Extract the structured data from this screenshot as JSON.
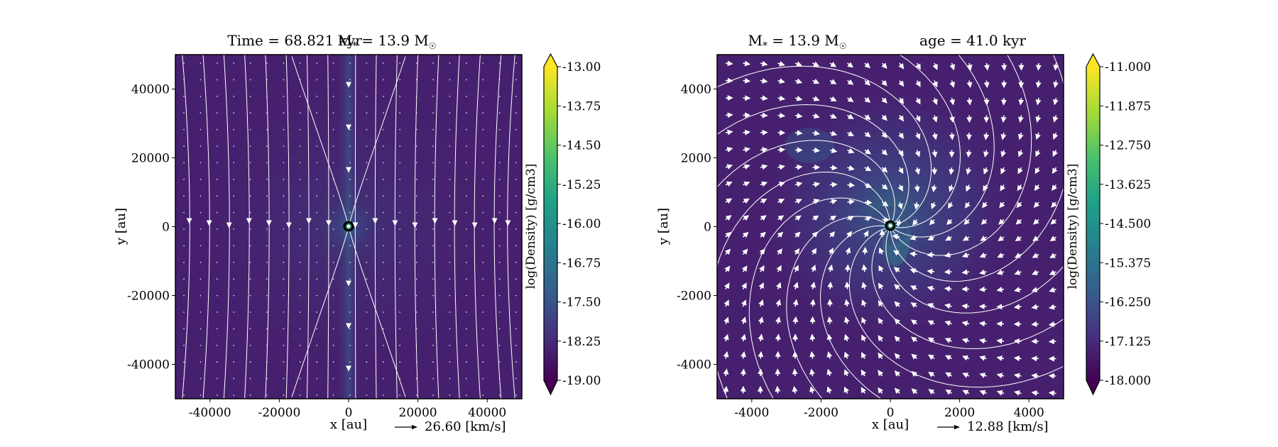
{
  "figure": {
    "panels": [
      {
        "id": "left",
        "title_time_label": "Time = 68.821 kyr",
        "title_mass_label": "M",
        "title_mass_sub": "*",
        "title_mass_value": "= 13.9 M",
        "title_mass_unit_sub": "☉",
        "xlabel": "x [au]",
        "ylabel": "y [au]",
        "xticks": [
          "-40000",
          "-20000",
          "0",
          "20000",
          "40000"
        ],
        "yticks": [
          "40000",
          "20000",
          "0",
          "-20000",
          "-40000"
        ],
        "quiver_key_label": "26.60 [km/s]",
        "colorbar_label": "log(Density) [g/cm3]",
        "colorbar_ticks": [
          "-13.00",
          "-13.75",
          "-14.50",
          "-15.25",
          "-16.00",
          "-16.75",
          "-17.50",
          "-18.25",
          "-19.00"
        ]
      },
      {
        "id": "right",
        "title_mass_label": "M",
        "title_mass_sub": "*",
        "title_mass_value": "= 13.9 M",
        "title_mass_unit_sub": "☉",
        "title_age_label": "age = 41.0 kyr",
        "xlabel": "x [au]",
        "ylabel": "y [au]",
        "xticks": [
          "-4000",
          "-2000",
          "0",
          "2000",
          "4000"
        ],
        "yticks": [
          "4000",
          "2000",
          "0",
          "-2000",
          "-4000"
        ],
        "quiver_key_label": "12.88 [km/s]",
        "colorbar_label": "log(Density) [g/cm3]",
        "colorbar_ticks": [
          "-11.000",
          "-11.875",
          "-12.750",
          "-13.625",
          "-14.500",
          "-15.375",
          "-16.250",
          "-17.125",
          "-18.000"
        ]
      }
    ]
  },
  "colors": {
    "viridis_low": "#440154",
    "viridis_1": "#46307e",
    "viridis_2": "#365c8d",
    "viridis_3": "#277f8e",
    "viridis_4": "#1fa187",
    "viridis_5": "#4ac16d",
    "viridis_6": "#a0da39",
    "viridis_high": "#fde725",
    "background_density": "#46206e",
    "stream_color": "#ffffff",
    "sink_color": "#1f7a55"
  },
  "chart_data": [
    {
      "type": "heatmap",
      "title": "Time = 68.821 kyr  M* = 13.9 M☉",
      "xlabel": "x [au]",
      "ylabel": "y [au]",
      "xlim": [
        -50000,
        50000
      ],
      "ylim": [
        -50000,
        50000
      ],
      "xticks": [
        -40000,
        -20000,
        0,
        20000,
        40000
      ],
      "yticks": [
        -40000,
        -20000,
        0,
        20000,
        40000
      ],
      "colorbar": {
        "label": "log(Density) [g/cm3]",
        "range": [
          -19.0,
          -13.0
        ],
        "cmap": "viridis",
        "ticks": [
          -13.0,
          -13.75,
          -14.5,
          -15.25,
          -16.0,
          -16.75,
          -17.5,
          -18.25,
          -19.0
        ]
      },
      "sink_particle": {
        "x": 0,
        "y": 0
      },
      "quiver_key": {
        "speed": 26.6,
        "unit": "km/s"
      },
      "overlay": [
        "velocity streamlines",
        "velocity arrows"
      ],
      "streamline_xs": [
        -48000,
        -42000,
        -36000,
        -30000,
        -24000,
        -18000,
        -12000,
        -6000,
        2000,
        8000,
        14000,
        20000,
        26000,
        32000,
        38000,
        44000,
        48000
      ]
    },
    {
      "type": "heatmap",
      "title": "M* = 13.9 M☉  age = 41.0 kyr",
      "xlabel": "x [au]",
      "ylabel": "y [au]",
      "xlim": [
        -5000,
        5000
      ],
      "ylim": [
        -5000,
        5000
      ],
      "xticks": [
        -4000,
        -2000,
        0,
        2000,
        4000
      ],
      "yticks": [
        -4000,
        -2000,
        0,
        2000,
        4000
      ],
      "colorbar": {
        "label": "log(Density) [g/cm3]",
        "range": [
          -18.0,
          -11.0
        ],
        "cmap": "viridis",
        "ticks": [
          -11.0,
          -11.875,
          -12.75,
          -13.625,
          -14.5,
          -15.375,
          -16.25,
          -17.125,
          -18.0
        ]
      },
      "sink_particle": {
        "x": 0,
        "y": 0
      },
      "quiver_key": {
        "speed": 12.88,
        "unit": "km/s"
      },
      "overlay": [
        "velocity streamlines",
        "velocity arrows"
      ]
    }
  ]
}
